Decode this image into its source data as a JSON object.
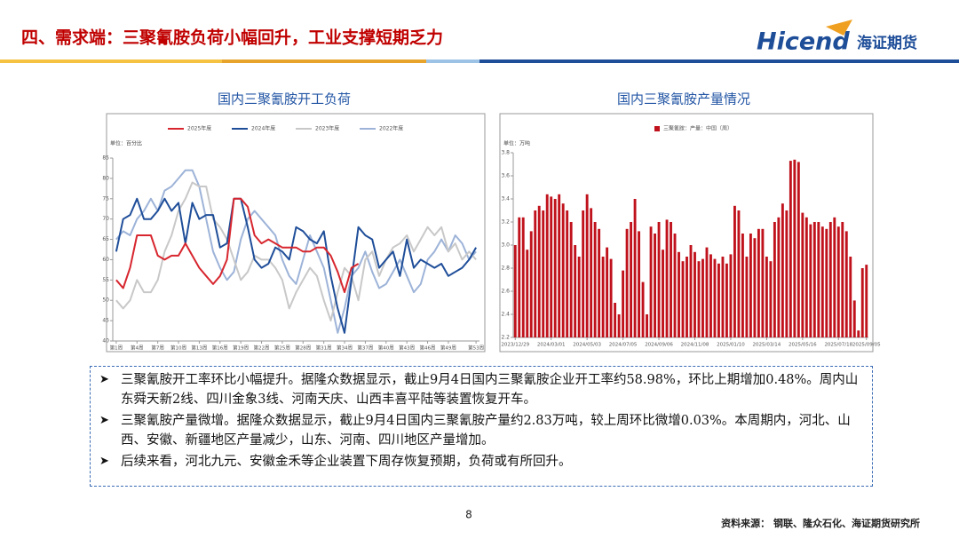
{
  "header": {
    "title": "四、需求端：三聚氰胺负荷小幅回升，工业支撑短期乏力",
    "logo": "Hicend",
    "logo_cn": "海证期货"
  },
  "chart_data": [
    {
      "type": "line",
      "title": "国内三聚氰胺开工负荷",
      "unit": "单位：百分比",
      "categories": [
        "第1周",
        null,
        null,
        "第4周",
        null,
        null,
        "第7周",
        null,
        null,
        "第10周",
        null,
        null,
        "第13周",
        null,
        null,
        "第16周",
        null,
        null,
        "第19周",
        null,
        null,
        "第22周",
        null,
        null,
        "第25周",
        null,
        null,
        "第28周",
        null,
        null,
        "第31周",
        null,
        null,
        "第34周",
        null,
        null,
        "第37周",
        null,
        null,
        "第40周",
        null,
        null,
        "第43周",
        null,
        null,
        "第46周",
        null,
        null,
        "第49周",
        null,
        null,
        null,
        "第53周"
      ],
      "series": [
        {
          "name": "2025年度",
          "color": "#d7262e",
          "width": 2,
          "values": [
            55,
            53,
            58,
            66,
            66,
            66,
            61,
            60,
            61,
            61,
            64,
            61,
            58,
            56,
            54,
            56,
            60,
            75,
            75,
            73,
            66,
            64,
            65,
            64,
            63,
            63,
            63,
            62,
            62,
            63,
            63,
            61,
            57,
            52,
            58,
            59,
            null,
            null,
            null,
            null,
            null,
            null,
            null,
            null,
            null,
            null,
            null,
            null,
            null,
            null,
            null,
            null,
            null
          ]
        },
        {
          "name": "2024年度",
          "color": "#1f4e99",
          "width": 2,
          "values": [
            62,
            70,
            71,
            75,
            70,
            70,
            72,
            75,
            72,
            74,
            64,
            74,
            70,
            71,
            71,
            63,
            64,
            75,
            75,
            68,
            60,
            58,
            59,
            63,
            62,
            60,
            68,
            67,
            65,
            64,
            67,
            56,
            48,
            42,
            55,
            68,
            66,
            65,
            58,
            60,
            62,
            56,
            65,
            58,
            60,
            59,
            58,
            59,
            56,
            57,
            58,
            60,
            63
          ]
        },
        {
          "name": "2023年度",
          "color": "#c8c8c8",
          "width": 2,
          "values": [
            50,
            48,
            50,
            55,
            52,
            52,
            55,
            62,
            66,
            72,
            75,
            79,
            78,
            78,
            70,
            68,
            65,
            60,
            55,
            57,
            61,
            60,
            60,
            58,
            55,
            48,
            52,
            55,
            58,
            56,
            50,
            45,
            52,
            58,
            56,
            50,
            60,
            62,
            56,
            60,
            63,
            64,
            66,
            62,
            65,
            68,
            66,
            68,
            62,
            64,
            60,
            62,
            60
          ]
        },
        {
          "name": "2022年度",
          "color": "#9db3d8",
          "width": 2,
          "values": [
            65,
            67,
            66,
            70,
            72,
            75,
            72,
            77,
            78,
            80,
            82,
            82,
            78,
            70,
            62,
            58,
            55,
            57,
            65,
            70,
            72,
            70,
            68,
            66,
            60,
            56,
            54,
            60,
            66,
            62,
            58,
            50,
            42,
            48,
            56,
            58,
            62,
            57,
            53,
            54,
            57,
            60,
            56,
            52,
            54,
            60,
            62,
            65,
            62,
            66,
            64,
            60,
            62
          ]
        }
      ],
      "ylim": [
        40,
        85
      ],
      "yticks": [
        40,
        45,
        50,
        55,
        60,
        65,
        70,
        75,
        80,
        85
      ]
    },
    {
      "type": "bar",
      "title": "国内三聚氰胺产量情况",
      "unit": "单位：万吨",
      "categories": [
        "2023/12/29",
        null,
        null,
        null,
        null,
        null,
        null,
        null,
        null,
        "2024/03/01",
        null,
        null,
        null,
        null,
        null,
        null,
        null,
        null,
        "2024/05/03",
        null,
        null,
        null,
        null,
        null,
        null,
        null,
        null,
        "2024/07/05",
        null,
        null,
        null,
        null,
        null,
        null,
        null,
        null,
        "2024/09/06",
        null,
        null,
        null,
        null,
        null,
        null,
        null,
        null,
        "2024/11/08",
        null,
        null,
        null,
        null,
        null,
        null,
        null,
        null,
        "2025/01/10",
        null,
        null,
        null,
        null,
        null,
        null,
        null,
        null,
        "2025/03/14",
        null,
        null,
        null,
        null,
        null,
        null,
        null,
        null,
        "2025/05/16",
        null,
        null,
        null,
        null,
        null,
        null,
        null,
        null,
        "2025/07/18",
        null,
        null,
        null,
        null,
        null,
        null,
        "2025/09/05"
      ],
      "series": [
        {
          "name": "三聚氰胺：产量：中国（周）",
          "color": "#c0121c",
          "values": [
            3.0,
            3.24,
            3.24,
            2.96,
            3.12,
            3.3,
            3.34,
            3.3,
            3.44,
            3.42,
            3.4,
            3.44,
            3.36,
            3.3,
            3.2,
            3.0,
            2.9,
            3.3,
            3.44,
            3.32,
            3.2,
            3.14,
            2.9,
            2.98,
            2.88,
            2.5,
            2.4,
            2.78,
            3.14,
            3.2,
            3.4,
            3.12,
            2.68,
            2.4,
            3.16,
            3.1,
            3.2,
            2.96,
            3.22,
            3.2,
            3.1,
            2.94,
            2.86,
            2.9,
            3.0,
            2.94,
            2.86,
            2.88,
            2.98,
            2.92,
            2.88,
            2.84,
            2.9,
            2.84,
            2.92,
            3.34,
            3.3,
            3.1,
            2.9,
            3.1,
            3.06,
            3.14,
            3.14,
            2.9,
            2.86,
            3.2,
            3.24,
            3.36,
            3.3,
            3.73,
            3.74,
            3.72,
            3.28,
            3.24,
            3.18,
            3.2,
            3.2,
            3.16,
            3.14,
            3.2,
            3.24,
            3.16,
            3.2,
            3.12,
            2.9,
            2.52,
            2.26,
            2.8,
            2.83
          ]
        }
      ],
      "ylim": [
        2.2,
        3.8
      ],
      "yticks": [
        2.2,
        2.4,
        2.6,
        2.8,
        {
          "value": 3,
          "label": "3.0"
        },
        3.2,
        3.4,
        3.6,
        3.8
      ]
    }
  ],
  "bullets": [
    "三聚氰胺开工率环比小幅提升。据隆众数据显示，截止9月4日国内三聚氰胺企业开工率约58.98%，环比上期增加0.48%。周内山东舜天新2线、四川金象3线、河南天庆、山西丰喜平陆等装置恢复开车。",
    "三聚氰胺产量微增。据隆众数据显示，截止9月4日国内三聚氰胺产量约2.83万吨，较上周环比微增0.03%。本周期内，河北、山西、安徽、新疆地区产量减少，山东、河南、四川地区产量增加。",
    "后续来看，河北九元、安徽金禾等企业装置下周存恢复预期，负荷或有所回升。"
  ],
  "page_number": "8",
  "source": "资料来源：  钢联、隆众石化、海证期货研究所"
}
